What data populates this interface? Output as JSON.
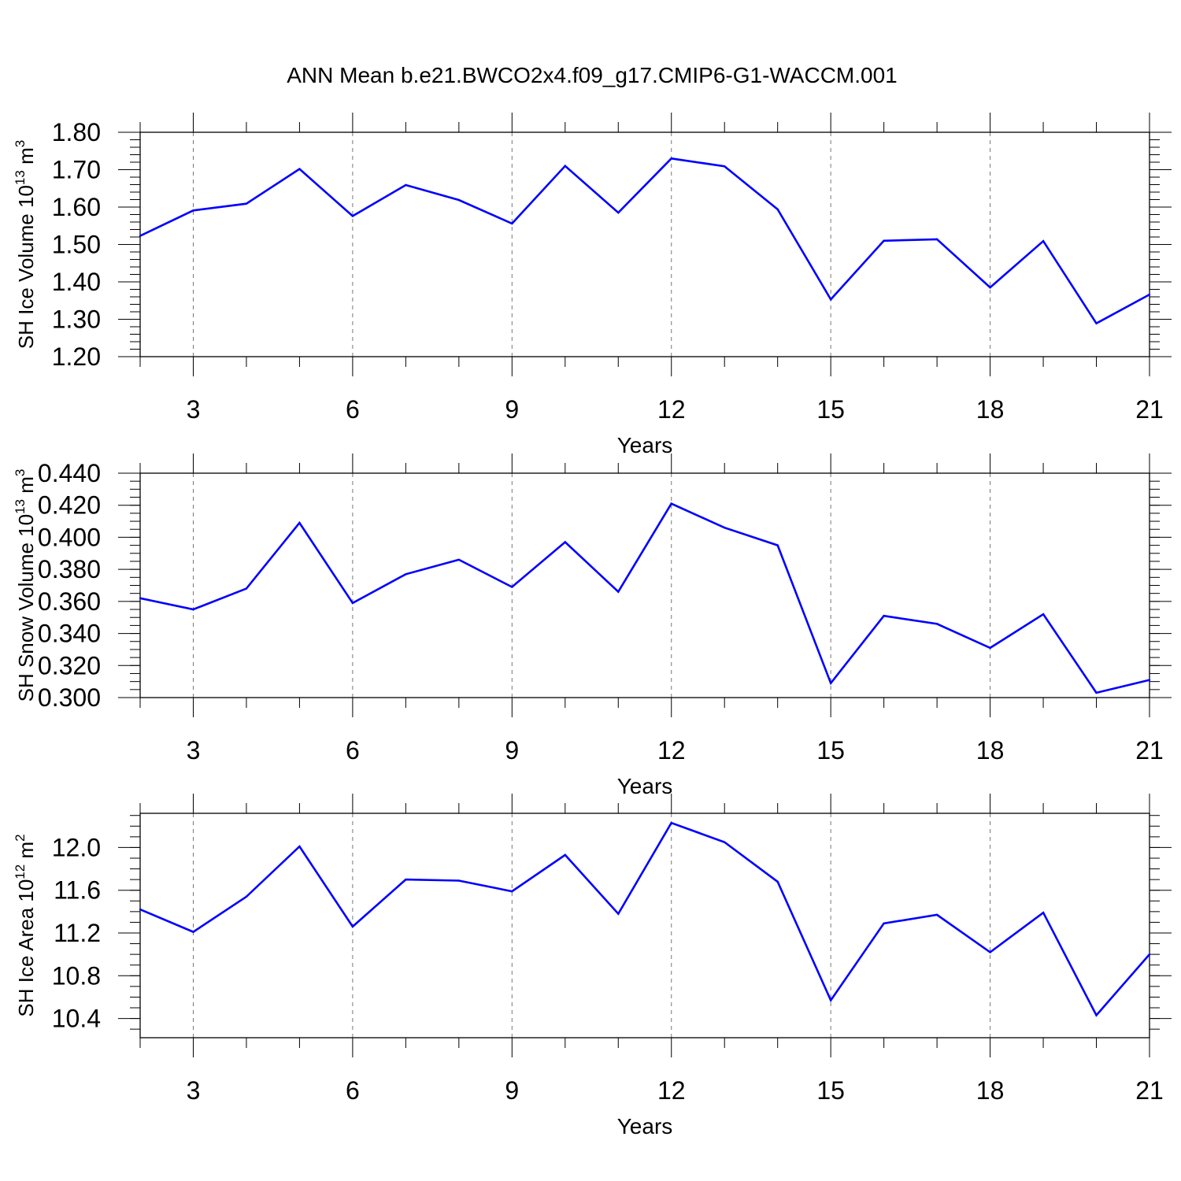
{
  "title": "ANN Mean b.e21.BWCO2x4.f09_g17.CMIP6-G1-WACCM.001",
  "chart_data": [
    {
      "type": "line",
      "ylabel": "SH Ice Volume 10",
      "ylabel_exp": "13",
      "ylabel_unit": " m",
      "ylabel_unit_exp": "3",
      "xlabel": "Years",
      "xlim": [
        2,
        21
      ],
      "ylim": [
        1.2,
        1.8
      ],
      "yticks": [
        "1.20",
        "1.30",
        "1.40",
        "1.50",
        "1.60",
        "1.70",
        "1.80"
      ],
      "xticks": [
        "3",
        "6",
        "9",
        "12",
        "15",
        "18",
        "21"
      ],
      "grid": "vertical dashed at major x ticks",
      "color": "#0000ff",
      "x": [
        2,
        3,
        4,
        5,
        6,
        7,
        8,
        9,
        10,
        11,
        12,
        13,
        14,
        15,
        16,
        17,
        18,
        19,
        20,
        21
      ],
      "values": [
        1.523,
        1.591,
        1.609,
        1.702,
        1.576,
        1.659,
        1.619,
        1.556,
        1.71,
        1.585,
        1.73,
        1.709,
        1.594,
        1.353,
        1.51,
        1.514,
        1.385,
        1.509,
        1.289,
        1.366
      ]
    },
    {
      "type": "line",
      "ylabel": "SH Snow Volume 10",
      "ylabel_exp": "13",
      "ylabel_unit": " m",
      "ylabel_unit_exp": "3",
      "xlabel": "Years",
      "xlim": [
        2,
        21
      ],
      "ylim": [
        0.3,
        0.44
      ],
      "yticks": [
        "0.300",
        "0.320",
        "0.340",
        "0.360",
        "0.380",
        "0.400",
        "0.420",
        "0.440"
      ],
      "xticks": [
        "3",
        "6",
        "9",
        "12",
        "15",
        "18",
        "21"
      ],
      "grid": "vertical dashed at major x ticks",
      "color": "#0000ff",
      "x": [
        2,
        3,
        4,
        5,
        6,
        7,
        8,
        9,
        10,
        11,
        12,
        13,
        14,
        15,
        16,
        17,
        18,
        19,
        20,
        21
      ],
      "values": [
        0.362,
        0.355,
        0.368,
        0.409,
        0.359,
        0.377,
        0.386,
        0.369,
        0.397,
        0.366,
        0.421,
        0.406,
        0.395,
        0.309,
        0.351,
        0.346,
        0.331,
        0.352,
        0.303,
        0.311
      ]
    },
    {
      "type": "line",
      "ylabel": "SH Ice Area 10",
      "ylabel_exp": "12",
      "ylabel_unit": " m",
      "ylabel_unit_exp": "2",
      "xlabel": "Years",
      "xlim": [
        2,
        21
      ],
      "ylim": [
        10.22,
        12.32
      ],
      "yticks": [
        "10.4",
        "10.8",
        "11.2",
        "11.6",
        "12.0"
      ],
      "xticks": [
        "3",
        "6",
        "9",
        "12",
        "15",
        "18",
        "21"
      ],
      "grid": "vertical dashed at major x ticks",
      "color": "#0000ff",
      "x": [
        2,
        3,
        4,
        5,
        6,
        7,
        8,
        9,
        10,
        11,
        12,
        13,
        14,
        15,
        16,
        17,
        18,
        19,
        20,
        21
      ],
      "values": [
        11.42,
        11.21,
        11.54,
        12.01,
        11.26,
        11.7,
        11.69,
        11.59,
        11.93,
        11.38,
        12.23,
        12.05,
        11.68,
        10.57,
        11.29,
        11.37,
        11.02,
        11.39,
        10.43,
        11.0
      ]
    }
  ]
}
